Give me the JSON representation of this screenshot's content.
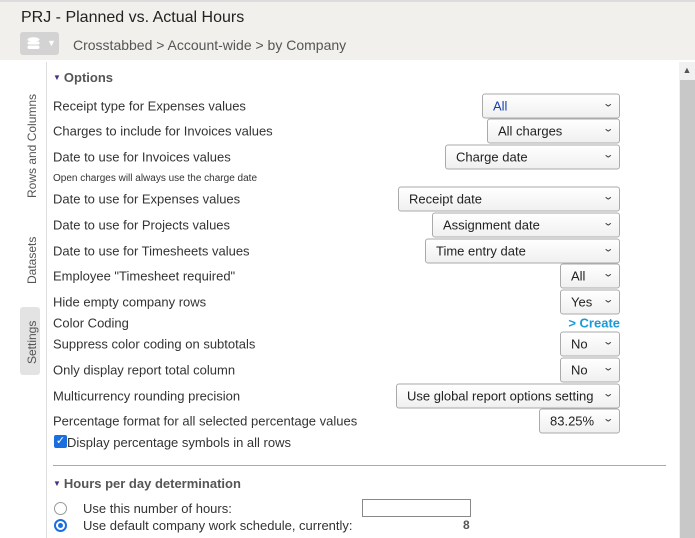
{
  "header": {
    "title": "PRJ - Planned vs. Actual Hours",
    "breadcrumb": "Crosstabbed > Account-wide > by Company",
    "db_icon": "database-icon"
  },
  "side_tabs": [
    "Rows and Columns",
    "Datasets",
    "Settings"
  ],
  "options": {
    "title": "Options",
    "rows": [
      {
        "label": "Receipt type for Expenses values",
        "value": "All"
      },
      {
        "label": "Charges to include for Invoices values",
        "value": "All charges"
      },
      {
        "label": "Date to use for Invoices values",
        "value": "Charge date"
      },
      {
        "label": "Date to use for Expenses values",
        "value": "Receipt date"
      },
      {
        "label": "Date to use for Projects values",
        "value": "Assignment date"
      },
      {
        "label": "Date to use for Timesheets values",
        "value": "Time entry date"
      },
      {
        "label": "Employee \"Timesheet required\"",
        "value": "All"
      },
      {
        "label": "Hide empty company rows",
        "value": "Yes"
      },
      {
        "label": "Color Coding",
        "link": "> Create"
      },
      {
        "label": "Suppress color coding on subtotals",
        "value": "No"
      },
      {
        "label": "Only display report total column",
        "value": "No"
      },
      {
        "label": "Multicurrency rounding precision",
        "value": "Use global report options setting"
      },
      {
        "label": "Percentage format for all selected percentage values",
        "value": "83.25%"
      }
    ],
    "note": "Open charges will always use the charge date",
    "checkbox": {
      "label": "Display percentage symbols in all rows",
      "checked": true
    }
  },
  "hours": {
    "title": "Hours per day determination",
    "opt1": {
      "label": "Use this number of hours:",
      "selected": false,
      "value": ""
    },
    "opt2": {
      "label": "Use default company work schedule, currently:",
      "selected": true,
      "value": "8"
    }
  },
  "colors": {
    "accent": "#1a6fe0",
    "link": "#1a9ad6",
    "triangle": "#4a2f8a"
  }
}
